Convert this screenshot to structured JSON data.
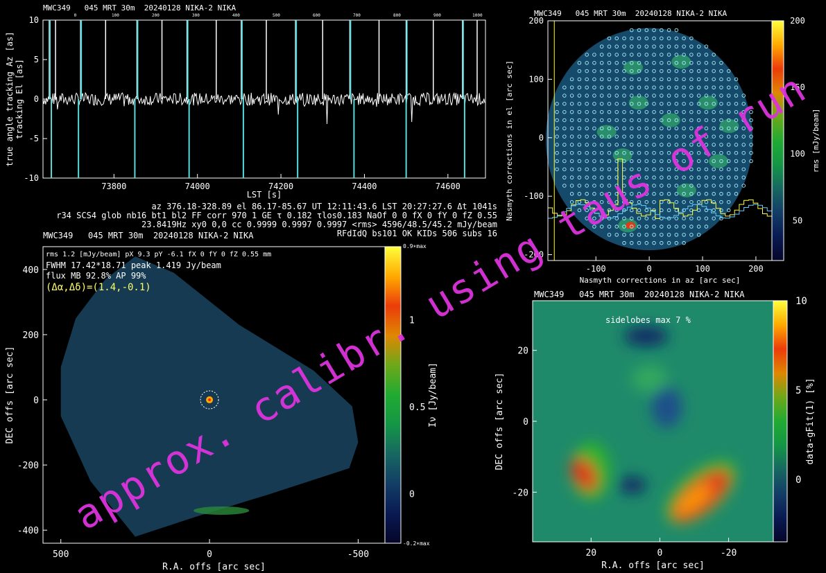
{
  "header": {
    "title": "MWC349   045 MRT 30m  20240128 NIKA-2 NIKA",
    "title_map": "MWC349   045 MRT 30m  20240128 NIKA-2 NIKA"
  },
  "info": {
    "line1": "az 376.18-328.89 el 86.17-85.67 UT 12:11:43.6 LST 20:27:27.6 Δt 1041s",
    "line2": "r34 SCS4 glob nb16 bt1 bl2 FF corr 970 1 GE τ 0.182 τlos0.183 NaOf 0 0 fX 0 fY 0 fZ 0.55",
    "line3": "23.8419Hz xy0 0,0 cc 0.9999 0.9997 0.9997 <rms> 4596/48.5/45.2 mJy/beam",
    "line4": "RFdIdQ bs101 OK KIDs 506 subs 16"
  },
  "map_stats": {
    "line1": "rms 1.2 [mJy/beam] pX 9.3 pY -6.1 fX 0 fY 0 fZ 0.55 mm",
    "line2": "FWHM 17.42*18.71 peak 1.419 Jy/beam",
    "line3": "flux MB 92.8% AP 99%",
    "offset": "(Δα,Δδ)=(1.4,-0.1)"
  },
  "sidelobes": "sidelobes max 7 %",
  "watermark": "approx. calibr. using taus of run",
  "chart_data": [
    {
      "type": "line",
      "name": "tracking",
      "xlabel": "LST [s]",
      "ylabel_top": "true angle tracking Az [as]",
      "ylabel_bottom": "tracking El [as]",
      "xlim": [
        73630,
        74690
      ],
      "ylim": [
        -10,
        10
      ],
      "xticks": [
        73800,
        74000,
        74200,
        74400,
        74600
      ],
      "yticks": [
        10,
        5,
        0,
        -5,
        -10
      ],
      "top_ticks": [
        "0",
        "100",
        "200",
        "300",
        "400",
        "500",
        "600",
        "700",
        "800",
        "900",
        "1000",
        "dT [s]"
      ],
      "spikes_up": [
        73645,
        73660,
        73720,
        73780,
        73855,
        73915,
        73975,
        74045,
        74105,
        74165,
        74235,
        74300,
        74365,
        74435,
        74500,
        74565,
        74635,
        74670
      ],
      "spikes_down": [
        73650,
        73715,
        73850,
        73980,
        74110,
        74240,
        74375,
        74500,
        74640
      ]
    },
    {
      "type": "scatter",
      "name": "nasmyth",
      "xlabel": "Nasmyth corrections in az [arc sec]",
      "ylabel": "Nasmyth corrections in el [arc sec]",
      "colorbar_label": "rms [mJy/beam]",
      "xlim": [
        -190,
        230
      ],
      "ylim": [
        -210,
        200
      ],
      "xticks": [
        -100,
        0,
        100,
        200
      ],
      "yticks": [
        200,
        100,
        0,
        -100,
        -200
      ],
      "cbar_range": [
        20,
        200
      ],
      "cbar_ticks": [
        200,
        150,
        100,
        50
      ]
    },
    {
      "type": "heatmap",
      "name": "flux_map",
      "xlabel": "R.A. offs [arc sec]",
      "ylabel": "DEC offs [arc sec]",
      "colorbar_label": "Iν [Jy/beam]",
      "xlim": [
        560,
        -590
      ],
      "ylim": [
        -440,
        470
      ],
      "xticks": [
        500,
        0,
        -500
      ],
      "yticks": [
        400,
        200,
        0,
        -200,
        -400
      ],
      "cbar_range": [
        -0.284,
        1.419
      ],
      "cbar_ticks": [
        1,
        0.5,
        0
      ],
      "cbar_top_label": "0.9∗max",
      "cbar_bottom_label": "-0.2∗max"
    },
    {
      "type": "heatmap",
      "name": "beam_residual",
      "xlabel": "R.A. offs [arc sec]",
      "ylabel": "DEC offs [arc sec]",
      "colorbar_label": "data-gFit(1) [%]",
      "xlim": [
        37,
        -33
      ],
      "ylim": [
        -34,
        34
      ],
      "xticks": [
        20,
        0,
        -20
      ],
      "yticks": [
        20,
        0,
        -20
      ],
      "cbar_range": [
        -3.5,
        10
      ],
      "cbar_ticks": [
        10,
        5,
        0
      ]
    }
  ]
}
